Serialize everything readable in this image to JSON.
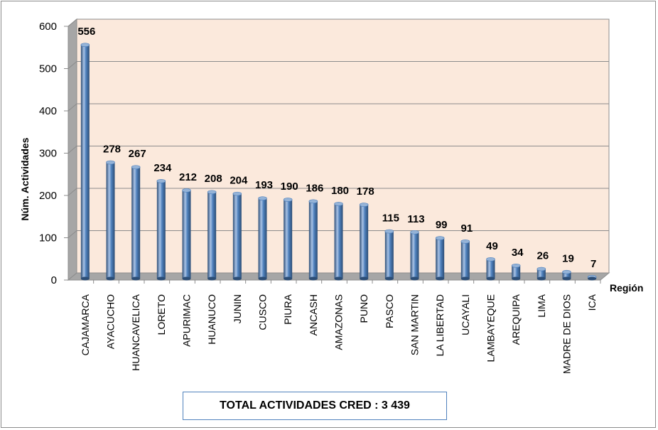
{
  "chart_data": {
    "type": "bar",
    "xlabel": "Región",
    "ylabel": "Núm. Actividades",
    "ylim": [
      0,
      600
    ],
    "yticks": [
      0,
      100,
      200,
      300,
      400,
      500,
      600
    ],
    "grid": true,
    "categories": [
      "CAJAMARCA",
      "AYACUCHO",
      "HUANCAVELICA",
      "LORETO",
      "APURIMAC",
      "HUANUCO",
      "JUNIN",
      "CUSCO",
      "PIURA",
      "ANCASH",
      "AMAZONAS",
      "PUNO",
      "PASCO",
      "SAN MARTIN",
      "LA LIBERTAD",
      "UCAYALI",
      "LAMBAYEQUE",
      "AREQUIPA",
      "LIMA",
      "MADRE DE DIOS",
      "ICA"
    ],
    "values": [
      556,
      278,
      267,
      234,
      212,
      208,
      204,
      193,
      190,
      186,
      180,
      178,
      115,
      113,
      99,
      91,
      49,
      34,
      26,
      19,
      7
    ],
    "colors": {
      "bar": "#4f81bd",
      "bar_dark": "#2c4d75",
      "bar_light": "#a9c3e6",
      "plot_bg": "#fbe9dc",
      "grid": "#8c8c8c"
    }
  },
  "total_box": {
    "text": "TOTAL ACTIVIDADES CRED : 3 439"
  }
}
